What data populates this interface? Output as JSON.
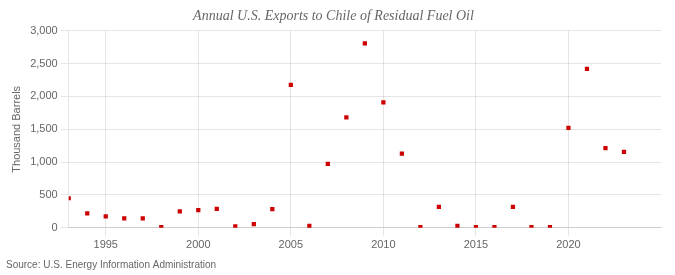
{
  "chart_data": {
    "type": "scatter",
    "title": "Annual U.S. Exports to Chile of Residual Fuel Oil",
    "ylabel": "Thousand Barrels",
    "annotations": [
      "Source: U.S. Energy Information Administration"
    ],
    "x": [
      1993,
      1994,
      1995,
      1996,
      1997,
      1998,
      1999,
      2000,
      2001,
      2002,
      2003,
      2004,
      2005,
      2006,
      2007,
      2008,
      2009,
      2010,
      2011,
      2012,
      2013,
      2014,
      2015,
      2016,
      2017,
      2018,
      2019,
      2020,
      2021,
      2022,
      2023
    ],
    "values": [
      450,
      220,
      175,
      145,
      145,
      10,
      250,
      270,
      290,
      20,
      55,
      285,
      2175,
      30,
      975,
      1680,
      2810,
      1910,
      1130,
      10,
      320,
      30,
      10,
      10,
      320,
      10,
      10,
      1520,
      2420,
      1215,
      1155
    ],
    "color": "#cc0000",
    "marker": "square",
    "xlim": [
      1993,
      2025
    ],
    "xticks": [
      1995,
      2000,
      2005,
      2010,
      2015,
      2020
    ],
    "ylim": [
      0,
      3000
    ],
    "yticks": [
      0,
      500,
      {
        "value": 1000,
        "label": "1,000"
      },
      {
        "value": 1500,
        "label": "1,500"
      },
      {
        "value": 2000,
        "label": "2,000"
      },
      {
        "value": 2500,
        "label": "2,500"
      },
      {
        "value": 3000,
        "label": "3,000"
      }
    ],
    "grid": true
  }
}
